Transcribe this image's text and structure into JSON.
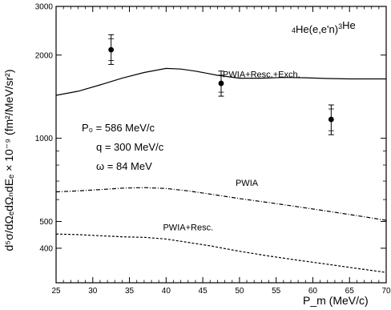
{
  "chart_data": {
    "type": "line",
    "title": "",
    "reaction_label": "4He(e,e'n)3He",
    "xlabel": "P_m  (MeV/c)",
    "ylabel": "d⁵σ/dΩₑdΩₙdEₑ × 10⁻⁹  (fm²/MeV/sr²)",
    "xscale": "linear",
    "yscale": "log",
    "xlim": [
      25,
      70
    ],
    "ylim": [
      300,
      3000
    ],
    "x_ticks": [
      25,
      30,
      35,
      40,
      45,
      50,
      55,
      60,
      65,
      70
    ],
    "y_ticks": [
      400,
      500,
      1000,
      2000,
      3000
    ],
    "y_tick_labels": [
      "400",
      "500",
      "1000",
      "2000",
      "3000"
    ],
    "kinematics": [
      "P₀ = 586 MeV/c",
      "q = 300 MeV/c",
      "ω = 84 MeV"
    ],
    "series": [
      {
        "name": "PWIA+Resc.+Exch.",
        "style": "solid",
        "label_at": [
          53,
          1660
        ],
        "x": [
          25,
          28,
          31,
          34,
          37,
          40,
          42,
          44,
          47,
          50,
          53,
          56,
          59,
          62,
          65,
          68,
          70
        ],
        "y": [
          1430,
          1480,
          1560,
          1650,
          1730,
          1790,
          1780,
          1750,
          1690,
          1650,
          1650,
          1660,
          1655,
          1645,
          1640,
          1640,
          1640
        ]
      },
      {
        "name": "PWIA",
        "style": "dashdot",
        "label_at": [
          51,
          672
        ],
        "x": [
          25,
          28,
          31,
          34,
          37,
          40,
          43,
          46,
          50,
          54,
          58,
          62,
          66,
          70
        ],
        "y": [
          640,
          645,
          652,
          660,
          663,
          658,
          645,
          628,
          605,
          585,
          565,
          545,
          525,
          505
        ]
      },
      {
        "name": "PWIA+Resc.",
        "style": "dashed",
        "label_at": [
          43,
          465
        ],
        "x": [
          25,
          28,
          31,
          34,
          37,
          40,
          43,
          46,
          50,
          54,
          58,
          62,
          66,
          70
        ],
        "y": [
          450,
          448,
          444,
          440,
          438,
          432,
          420,
          408,
          390,
          375,
          362,
          350,
          338,
          327
        ]
      }
    ],
    "data_points": {
      "name": "data",
      "x": [
        32.5,
        47.5,
        62.5
      ],
      "y": [
        2090,
        1580,
        1170
      ],
      "err_low": [
        240,
        160,
        140
      ],
      "err_high": [
        280,
        170,
        150
      ]
    },
    "grid": false,
    "legend": "none"
  }
}
